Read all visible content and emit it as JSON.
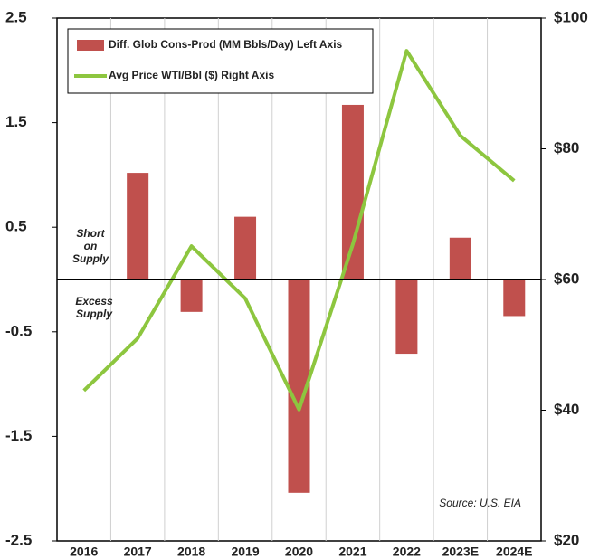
{
  "chart_data": {
    "type": "bar_line",
    "categories": [
      "2016",
      "2017",
      "2018",
      "2019",
      "2020",
      "2021",
      "2022",
      "2023E",
      "2024E"
    ],
    "series": [
      {
        "name": "Diff. Glob Cons-Prod (MM Bbls/Day) Left Axis",
        "color": "#c0504d",
        "type": "bar",
        "axis": "y",
        "values": [
          null,
          1.02,
          -0.31,
          0.6,
          -2.04,
          1.67,
          -0.71,
          0.4,
          -0.35
        ]
      },
      {
        "name": "Avg Price WTI/Bbl ($) Right Axis",
        "color": "#8dc63f",
        "type": "line",
        "axis": "y2",
        "values": [
          43.0,
          51.0,
          65.1,
          57.1,
          40.1,
          65.4,
          95.0,
          82.0,
          75.1
        ]
      }
    ],
    "ylim": [
      -2.5,
      2.5
    ],
    "yticks": [
      -2.5,
      -1.5,
      -0.5,
      0.5,
      1.5,
      2.5
    ],
    "y2lim": [
      20,
      100
    ],
    "y2ticks": [
      {
        "value": 20,
        "label": "$20"
      },
      {
        "value": 40,
        "label": "$40"
      },
      {
        "value": 60,
        "label": "$60"
      },
      {
        "value": 80,
        "label": "$80"
      },
      {
        "value": 100,
        "label": "$100"
      }
    ],
    "annotations": [
      {
        "lines": [
          "Short",
          "on",
          "Supply"
        ]
      },
      {
        "lines": [
          "Excess",
          "Supply"
        ]
      },
      {
        "text": "Source: U.S. EIA"
      }
    ],
    "legend": "upper left"
  }
}
